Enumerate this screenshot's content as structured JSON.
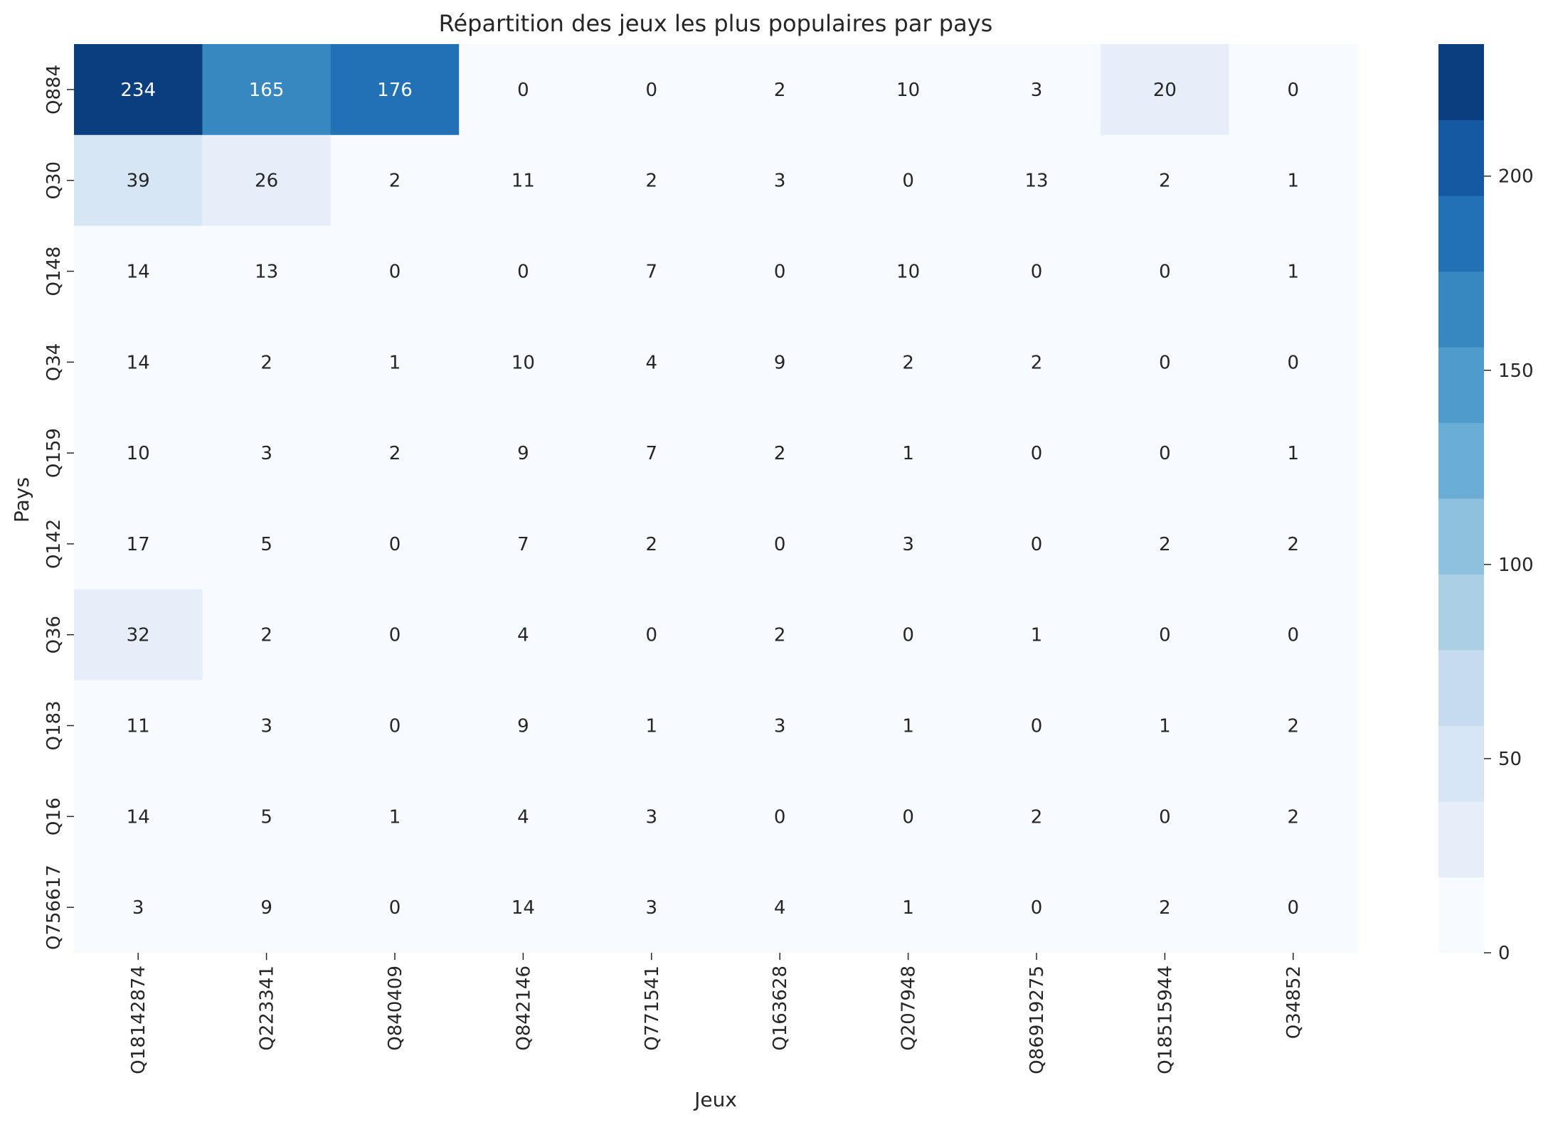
{
  "chart_data": {
    "type": "heatmap",
    "title": "Répartition des jeux les plus populaires par pays",
    "xlabel": "Jeux",
    "ylabel": "Pays",
    "x_categories": [
      "Q18142874",
      "Q223341",
      "Q840409",
      "Q842146",
      "Q771541",
      "Q163628",
      "Q207948",
      "Q86919275",
      "Q18515944",
      "Q34852"
    ],
    "y_categories": [
      "Q884",
      "Q30",
      "Q148",
      "Q34",
      "Q159",
      "Q142",
      "Q36",
      "Q183",
      "Q16",
      "Q756617"
    ],
    "values": [
      [
        234,
        165,
        176,
        0,
        0,
        2,
        10,
        3,
        20,
        0
      ],
      [
        39,
        26,
        2,
        11,
        2,
        3,
        0,
        13,
        2,
        1
      ],
      [
        14,
        13,
        0,
        0,
        7,
        0,
        10,
        0,
        0,
        1
      ],
      [
        14,
        2,
        1,
        10,
        4,
        9,
        2,
        2,
        0,
        0
      ],
      [
        10,
        3,
        2,
        9,
        7,
        2,
        1,
        0,
        0,
        1
      ],
      [
        17,
        5,
        0,
        7,
        2,
        0,
        3,
        0,
        2,
        2
      ],
      [
        32,
        2,
        0,
        4,
        0,
        2,
        0,
        1,
        0,
        0
      ],
      [
        11,
        3,
        0,
        9,
        1,
        3,
        1,
        0,
        1,
        2
      ],
      [
        14,
        5,
        1,
        4,
        3,
        0,
        0,
        2,
        0,
        2
      ],
      [
        3,
        9,
        0,
        14,
        3,
        4,
        1,
        0,
        2,
        0
      ]
    ],
    "colorbar": {
      "range": [
        0,
        234
      ],
      "ticks": [
        0,
        50,
        100,
        150,
        200
      ],
      "bins": 12,
      "colormap": "Blues",
      "colors": [
        "#f7fbff",
        "#e6eff9",
        "#d6e6f4",
        "#c6dbef",
        "#abd0e6",
        "#8dc1dd",
        "#6aaed6",
        "#4f9bcb",
        "#3787c0",
        "#2270b5",
        "#1459a1",
        "#0a3e7e"
      ]
    },
    "grid": false
  }
}
